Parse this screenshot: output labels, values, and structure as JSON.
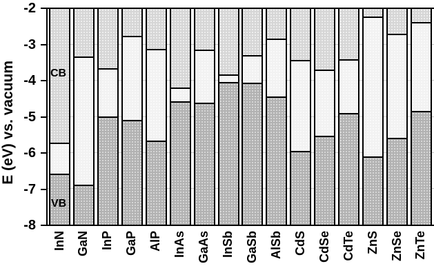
{
  "chart_data": {
    "type": "bar",
    "subtype": "stacked-band-alignment-columns",
    "title": "",
    "ylabel": "E (eV) vs. vacuum",
    "xlabel": "",
    "ylim": [
      -8,
      -2
    ],
    "yticks": [
      -2,
      -3,
      -4,
      -5,
      -6,
      -7,
      -8
    ],
    "ytick_labels": [
      "-2",
      "-3",
      "-4",
      "-5",
      "-6",
      "-7",
      "-8"
    ],
    "grid": "horizontal light-gray lines at each integer eV, drawn behind bars",
    "legend_position": "none",
    "annotations": {
      "cb": "CB",
      "vb": "VB"
    },
    "categories": [
      "InN",
      "GaN",
      "InP",
      "GaP",
      "AlP",
      "InAs",
      "GaAs",
      "InSb",
      "GaSb",
      "AlSb",
      "CdS",
      "CdSe",
      "CdTe",
      "ZnS",
      "ZnSe",
      "ZnTe"
    ],
    "series": [
      {
        "name": "conduction_band_minimum_eV",
        "values": [
          -5.76,
          -3.37,
          -3.68,
          -2.78,
          -3.15,
          -4.22,
          -3.16,
          -3.86,
          -3.33,
          -2.86,
          -3.45,
          -3.72,
          -3.44,
          -2.24,
          -2.72,
          -2.41
        ]
      },
      {
        "name": "valence_band_maximum_eV",
        "values": [
          -6.59,
          -6.88,
          -5.0,
          -5.09,
          -5.66,
          -4.56,
          -4.6,
          -4.04,
          -4.05,
          -4.43,
          -5.95,
          -5.52,
          -4.89,
          -6.1,
          -5.58,
          -4.83
        ]
      }
    ],
    "rendering_note": "Each column: stippled light-gray conduction-band region from -2 eV down to CBM, plain near-white band-gap region between CBM and VBM, darker stippled valence-band region from VBM down to -8 eV; black 2px outlines and edge lines."
  },
  "colors": {
    "background": "#ffffff",
    "axis": "#000000",
    "gridline": "#c4c4c4",
    "cb_fill": "#d6d6d6",
    "cb_dot": "#efefef",
    "gap_fill": "#f2f2f2",
    "gap_dot": "#fafafa",
    "vb_fill": "#b2b2b2",
    "vb_dot": "#d8d8d8",
    "text": "#000000"
  }
}
